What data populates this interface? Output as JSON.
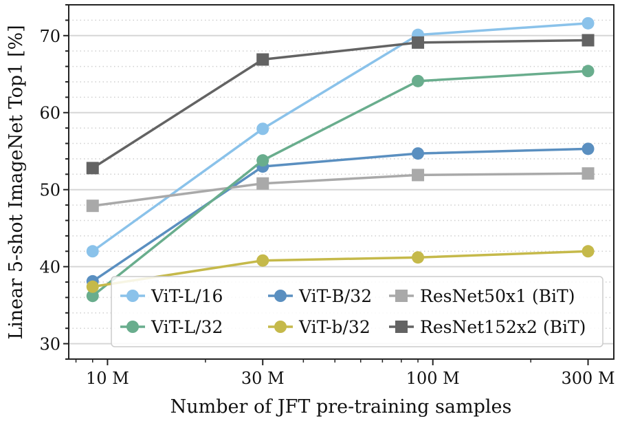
{
  "chart_data": {
    "type": "line",
    "xlabel": "Number of JFT pre-training samples",
    "ylabel": "Linear 5-shot ImageNet Top1 [%]",
    "xscale": "log",
    "xlim": [
      7.6,
      360
    ],
    "ylim": [
      28,
      74
    ],
    "x": [
      9,
      30,
      90,
      300
    ],
    "xticks": [
      10,
      30,
      100,
      300
    ],
    "xtick_labels": [
      "10 M",
      "30 M",
      "100 M",
      "300 M"
    ],
    "yticks": [
      30,
      40,
      50,
      60,
      70
    ],
    "ytick_labels": [
      "30",
      "40",
      "50",
      "60",
      "70"
    ],
    "grid": "major solid, minor dotted (horizontal)",
    "legend": "bottom-right, 3 columns",
    "series": [
      {
        "name": "ViT-L/16",
        "marker": "circle",
        "color": "#8ac2ea",
        "values": [
          42.0,
          57.9,
          70.1,
          71.6
        ]
      },
      {
        "name": "ViT-B/32",
        "marker": "circle",
        "color": "#5a8fc0",
        "values": [
          38.1,
          53.0,
          54.7,
          55.3
        ]
      },
      {
        "name": "ResNet50x1 (BiT)",
        "marker": "square",
        "color": "#a9a9a9",
        "values": [
          47.9,
          50.8,
          51.9,
          52.1
        ]
      },
      {
        "name": "ViT-L/32",
        "marker": "circle",
        "color": "#69ad8d",
        "values": [
          36.2,
          53.8,
          64.1,
          65.4
        ]
      },
      {
        "name": "ViT-b/32",
        "marker": "circle",
        "color": "#c5b94a",
        "values": [
          37.4,
          40.8,
          41.2,
          42.0
        ]
      },
      {
        "name": "ResNet152x2 (BiT)",
        "marker": "square",
        "color": "#636363",
        "values": [
          52.8,
          66.9,
          69.1,
          69.4
        ]
      }
    ]
  }
}
